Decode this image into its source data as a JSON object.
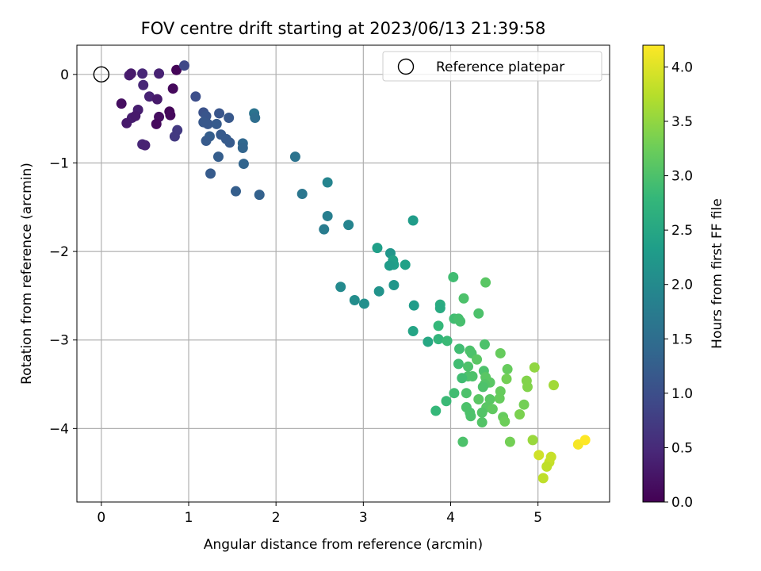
{
  "chart_data": {
    "type": "scatter",
    "title": "FOV centre drift starting at 2023/06/13 21:39:58",
    "xlabel": "Angular distance from reference (arcmin)",
    "ylabel": "Rotation from reference (arcmin)",
    "xlim": [
      -0.28,
      5.82
    ],
    "ylim": [
      -4.83,
      0.33
    ],
    "xticks": [
      0,
      1,
      2,
      3,
      4,
      5
    ],
    "yticks": [
      0,
      -1,
      -2,
      -3,
      -4
    ],
    "xtick_labels": [
      "0",
      "1",
      "2",
      "3",
      "4",
      "5"
    ],
    "ytick_labels": [
      "0",
      "−1",
      "−2",
      "−3",
      "−4"
    ],
    "grid": true,
    "legend": {
      "position": "top-right",
      "entries": [
        "Reference platepar"
      ]
    },
    "reference_point": {
      "x": 0,
      "y": 0
    },
    "colorbar": {
      "label": "Hours from first FF file",
      "colormap": "viridis",
      "range": [
        0.0,
        4.2
      ],
      "ticks": [
        0.0,
        0.5,
        1.0,
        1.5,
        2.0,
        2.5,
        3.0,
        3.5,
        4.0
      ],
      "tick_labels": [
        "0.0",
        "0.5",
        "1.0",
        "1.5",
        "2.0",
        "2.5",
        "3.0",
        "3.5",
        "4.0"
      ]
    },
    "points": [
      {
        "x": 0.32,
        "y": -0.01,
        "c": 0.35
      },
      {
        "x": 0.34,
        "y": 0.01,
        "c": 0.3
      },
      {
        "x": 0.47,
        "y": 0.01,
        "c": 0.45
      },
      {
        "x": 0.66,
        "y": 0.01,
        "c": 0.4
      },
      {
        "x": 0.86,
        "y": 0.05,
        "c": 0.05
      },
      {
        "x": 0.95,
        "y": 0.1,
        "c": 0.9
      },
      {
        "x": 0.48,
        "y": -0.12,
        "c": 0.45
      },
      {
        "x": 0.82,
        "y": -0.16,
        "c": 0.1
      },
      {
        "x": 0.55,
        "y": -0.25,
        "c": 0.4
      },
      {
        "x": 0.64,
        "y": -0.28,
        "c": 0.3
      },
      {
        "x": 0.23,
        "y": -0.33,
        "c": 0.15
      },
      {
        "x": 0.42,
        "y": -0.4,
        "c": 0.35
      },
      {
        "x": 0.78,
        "y": -0.42,
        "c": 0.05
      },
      {
        "x": 0.79,
        "y": -0.46,
        "c": 0.1
      },
      {
        "x": 0.66,
        "y": -0.48,
        "c": 0.15
      },
      {
        "x": 0.35,
        "y": -0.49,
        "c": 0.35
      },
      {
        "x": 0.39,
        "y": -0.47,
        "c": 0.3
      },
      {
        "x": 0.29,
        "y": -0.55,
        "c": 0.3
      },
      {
        "x": 0.63,
        "y": -0.56,
        "c": 0.1
      },
      {
        "x": 0.87,
        "y": -0.63,
        "c": 0.7
      },
      {
        "x": 0.84,
        "y": -0.7,
        "c": 0.7
      },
      {
        "x": 0.47,
        "y": -0.79,
        "c": 0.45
      },
      {
        "x": 0.5,
        "y": -0.8,
        "c": 0.4
      },
      {
        "x": 1.08,
        "y": -0.25,
        "c": 1.0
      },
      {
        "x": 1.17,
        "y": -0.43,
        "c": 1.05
      },
      {
        "x": 1.2,
        "y": -0.47,
        "c": 1.1
      },
      {
        "x": 1.35,
        "y": -0.44,
        "c": 1.1
      },
      {
        "x": 1.46,
        "y": -0.49,
        "c": 1.15
      },
      {
        "x": 1.75,
        "y": -0.44,
        "c": 1.6
      },
      {
        "x": 1.76,
        "y": -0.49,
        "c": 1.5
      },
      {
        "x": 1.17,
        "y": -0.54,
        "c": 1.15
      },
      {
        "x": 1.22,
        "y": -0.56,
        "c": 1.15
      },
      {
        "x": 1.32,
        "y": -0.56,
        "c": 1.2
      },
      {
        "x": 1.37,
        "y": -0.68,
        "c": 1.2
      },
      {
        "x": 1.24,
        "y": -0.7,
        "c": 1.25
      },
      {
        "x": 1.2,
        "y": -0.75,
        "c": 1.2
      },
      {
        "x": 1.43,
        "y": -0.73,
        "c": 1.2
      },
      {
        "x": 1.47,
        "y": -0.77,
        "c": 1.2
      },
      {
        "x": 1.62,
        "y": -0.78,
        "c": 1.4
      },
      {
        "x": 1.62,
        "y": -0.83,
        "c": 1.35
      },
      {
        "x": 1.34,
        "y": -0.93,
        "c": 1.25
      },
      {
        "x": 1.63,
        "y": -1.01,
        "c": 1.35
      },
      {
        "x": 1.25,
        "y": -1.12,
        "c": 1.2
      },
      {
        "x": 1.54,
        "y": -1.32,
        "c": 1.25
      },
      {
        "x": 1.81,
        "y": -1.36,
        "c": 1.3
      },
      {
        "x": 2.22,
        "y": -0.93,
        "c": 1.6
      },
      {
        "x": 2.59,
        "y": -1.22,
        "c": 1.9
      },
      {
        "x": 2.3,
        "y": -1.35,
        "c": 1.65
      },
      {
        "x": 2.59,
        "y": -1.6,
        "c": 1.8
      },
      {
        "x": 2.55,
        "y": -1.75,
        "c": 1.75
      },
      {
        "x": 2.83,
        "y": -1.7,
        "c": 1.9
      },
      {
        "x": 3.57,
        "y": -1.65,
        "c": 2.3
      },
      {
        "x": 3.16,
        "y": -1.96,
        "c": 2.35
      },
      {
        "x": 3.31,
        "y": -2.02,
        "c": 2.2
      },
      {
        "x": 3.34,
        "y": -2.1,
        "c": 2.4
      },
      {
        "x": 3.35,
        "y": -2.15,
        "c": 2.35
      },
      {
        "x": 3.3,
        "y": -2.16,
        "c": 2.3
      },
      {
        "x": 3.48,
        "y": -2.15,
        "c": 2.4
      },
      {
        "x": 3.35,
        "y": -2.38,
        "c": 2.2
      },
      {
        "x": 2.74,
        "y": -2.4,
        "c": 2.0
      },
      {
        "x": 3.18,
        "y": -2.45,
        "c": 2.15
      },
      {
        "x": 2.9,
        "y": -2.55,
        "c": 2.05
      },
      {
        "x": 3.01,
        "y": -2.59,
        "c": 2.1
      },
      {
        "x": 3.58,
        "y": -2.61,
        "c": 2.3
      },
      {
        "x": 3.57,
        "y": -2.9,
        "c": 2.45
      },
      {
        "x": 3.74,
        "y": -3.02,
        "c": 2.5
      },
      {
        "x": 4.03,
        "y": -2.29,
        "c": 2.9
      },
      {
        "x": 4.4,
        "y": -2.35,
        "c": 3.1
      },
      {
        "x": 4.15,
        "y": -2.53,
        "c": 3.0
      },
      {
        "x": 3.88,
        "y": -2.6,
        "c": 2.6
      },
      {
        "x": 3.88,
        "y": -2.64,
        "c": 2.55
      },
      {
        "x": 4.32,
        "y": -2.7,
        "c": 3.0
      },
      {
        "x": 4.04,
        "y": -2.76,
        "c": 2.9
      },
      {
        "x": 4.09,
        "y": -2.76,
        "c": 2.95
      },
      {
        "x": 4.11,
        "y": -2.79,
        "c": 2.95
      },
      {
        "x": 3.86,
        "y": -2.84,
        "c": 2.8
      },
      {
        "x": 3.86,
        "y": -2.99,
        "c": 2.75
      },
      {
        "x": 3.96,
        "y": -3.01,
        "c": 2.85
      },
      {
        "x": 4.39,
        "y": -3.05,
        "c": 3.0
      },
      {
        "x": 4.1,
        "y": -3.1,
        "c": 2.9
      },
      {
        "x": 4.22,
        "y": -3.12,
        "c": 3.0
      },
      {
        "x": 4.24,
        "y": -3.15,
        "c": 3.0
      },
      {
        "x": 4.57,
        "y": -3.15,
        "c": 3.2
      },
      {
        "x": 4.3,
        "y": -3.22,
        "c": 3.1
      },
      {
        "x": 4.09,
        "y": -3.27,
        "c": 2.9
      },
      {
        "x": 4.2,
        "y": -3.3,
        "c": 3.0
      },
      {
        "x": 4.38,
        "y": -3.35,
        "c": 3.0
      },
      {
        "x": 4.65,
        "y": -3.33,
        "c": 3.2
      },
      {
        "x": 4.96,
        "y": -3.31,
        "c": 3.5
      },
      {
        "x": 4.2,
        "y": -3.41,
        "c": 3.0
      },
      {
        "x": 4.25,
        "y": -3.41,
        "c": 3.0
      },
      {
        "x": 4.13,
        "y": -3.43,
        "c": 2.9
      },
      {
        "x": 4.4,
        "y": -3.42,
        "c": 3.1
      },
      {
        "x": 4.64,
        "y": -3.44,
        "c": 3.3
      },
      {
        "x": 4.87,
        "y": -3.46,
        "c": 3.4
      },
      {
        "x": 4.45,
        "y": -3.48,
        "c": 3.1
      },
      {
        "x": 4.39,
        "y": -3.5,
        "c": 3.05
      },
      {
        "x": 5.18,
        "y": -3.51,
        "c": 3.6
      },
      {
        "x": 4.37,
        "y": -3.53,
        "c": 3.0
      },
      {
        "x": 4.88,
        "y": -3.53,
        "c": 3.4
      },
      {
        "x": 4.57,
        "y": -3.58,
        "c": 3.2
      },
      {
        "x": 4.04,
        "y": -3.6,
        "c": 2.9
      },
      {
        "x": 4.18,
        "y": -3.6,
        "c": 3.0
      },
      {
        "x": 4.32,
        "y": -3.67,
        "c": 3.1
      },
      {
        "x": 4.45,
        "y": -3.67,
        "c": 3.1
      },
      {
        "x": 4.56,
        "y": -3.66,
        "c": 3.2
      },
      {
        "x": 3.95,
        "y": -3.69,
        "c": 2.85
      },
      {
        "x": 4.84,
        "y": -3.73,
        "c": 3.3
      },
      {
        "x": 4.18,
        "y": -3.76,
        "c": 3.0
      },
      {
        "x": 4.41,
        "y": -3.76,
        "c": 3.1
      },
      {
        "x": 4.48,
        "y": -3.78,
        "c": 3.15
      },
      {
        "x": 3.83,
        "y": -3.8,
        "c": 2.8
      },
      {
        "x": 4.22,
        "y": -3.82,
        "c": 3.0
      },
      {
        "x": 4.36,
        "y": -3.82,
        "c": 3.05
      },
      {
        "x": 4.79,
        "y": -3.84,
        "c": 3.35
      },
      {
        "x": 4.23,
        "y": -3.86,
        "c": 3.0
      },
      {
        "x": 4.6,
        "y": -3.87,
        "c": 3.2
      },
      {
        "x": 4.62,
        "y": -3.92,
        "c": 3.25
      },
      {
        "x": 4.36,
        "y": -3.93,
        "c": 3.05
      },
      {
        "x": 4.14,
        "y": -4.15,
        "c": 3.0
      },
      {
        "x": 4.68,
        "y": -4.15,
        "c": 3.3
      },
      {
        "x": 4.94,
        "y": -4.13,
        "c": 3.55
      },
      {
        "x": 5.01,
        "y": -4.3,
        "c": 3.9
      },
      {
        "x": 5.15,
        "y": -4.32,
        "c": 3.85
      },
      {
        "x": 5.13,
        "y": -4.38,
        "c": 3.85
      },
      {
        "x": 5.1,
        "y": -4.43,
        "c": 3.8
      },
      {
        "x": 5.06,
        "y": -4.56,
        "c": 3.8
      },
      {
        "x": 5.46,
        "y": -4.18,
        "c": 4.15
      },
      {
        "x": 5.54,
        "y": -4.13,
        "c": 4.2
      }
    ]
  }
}
